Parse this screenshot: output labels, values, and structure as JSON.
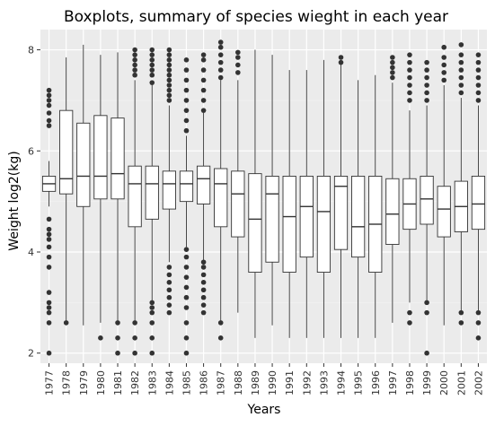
{
  "chart_data": {
    "type": "boxplot",
    "title": "Boxplots, summary of species wieght in each year",
    "xlabel": "Years",
    "ylabel": "Weight log2(kg)",
    "ylim": [
      1.8,
      8.4
    ],
    "y_ticks": [
      2,
      4,
      6,
      8
    ],
    "grid": true,
    "legend": "none",
    "categories": [
      "1977",
      "1978",
      "1979",
      "1980",
      "1981",
      "1982",
      "1983",
      "1984",
      "1985",
      "1986",
      "1987",
      "1988",
      "1989",
      "1990",
      "1991",
      "1992",
      "1993",
      "1994",
      "1995",
      "1996",
      "1997",
      "1998",
      "1999",
      "2000",
      "2001",
      "2002"
    ],
    "boxes": [
      {
        "year": "1977",
        "whislo": 4.9,
        "q1": 5.2,
        "med": 5.35,
        "q3": 5.5,
        "whishi": 5.8,
        "outliers": [
          2.0,
          2.6,
          2.8,
          2.9,
          3.0,
          3.2,
          3.7,
          3.9,
          4.1,
          4.25,
          4.35,
          4.45,
          4.65,
          6.5,
          6.6,
          6.75,
          6.9,
          7.0,
          7.1,
          7.2
        ]
      },
      {
        "year": "1978",
        "whislo": 2.6,
        "q1": 5.15,
        "med": 5.45,
        "q3": 6.8,
        "whishi": 7.85,
        "outliers": [
          2.6
        ]
      },
      {
        "year": "1979",
        "whislo": 2.55,
        "q1": 4.9,
        "med": 5.5,
        "q3": 6.55,
        "whishi": 8.1,
        "outliers": []
      },
      {
        "year": "1980",
        "whislo": 2.6,
        "q1": 5.05,
        "med": 5.5,
        "q3": 6.7,
        "whishi": 7.9,
        "outliers": [
          2.3
        ]
      },
      {
        "year": "1981",
        "whislo": 2.6,
        "q1": 5.05,
        "med": 5.55,
        "q3": 6.65,
        "whishi": 7.95,
        "outliers": [
          2.0,
          2.3,
          2.6
        ]
      },
      {
        "year": "1982",
        "whislo": 2.6,
        "q1": 4.5,
        "med": 5.35,
        "q3": 5.7,
        "whishi": 7.4,
        "outliers": [
          2.0,
          2.3,
          2.6,
          7.5,
          7.6,
          7.7,
          7.8,
          7.9,
          8.0
        ]
      },
      {
        "year": "1983",
        "whislo": 3.0,
        "q1": 4.65,
        "med": 5.35,
        "q3": 5.7,
        "whishi": 7.3,
        "outliers": [
          2.0,
          2.3,
          2.6,
          2.8,
          2.9,
          3.0,
          7.35,
          7.5,
          7.6,
          7.7,
          7.8,
          7.9,
          8.0
        ]
      },
      {
        "year": "1984",
        "whislo": 3.8,
        "q1": 4.85,
        "med": 5.35,
        "q3": 5.6,
        "whishi": 6.9,
        "outliers": [
          2.8,
          2.95,
          3.1,
          3.25,
          3.4,
          3.55,
          3.7,
          7.0,
          7.1,
          7.2,
          7.3,
          7.4,
          7.5,
          7.6,
          7.7,
          7.8,
          7.9,
          8.0
        ]
      },
      {
        "year": "1985",
        "whislo": 4.1,
        "q1": 5.0,
        "med": 5.35,
        "q3": 5.6,
        "whishi": 6.3,
        "outliers": [
          2.0,
          2.3,
          2.6,
          2.9,
          3.1,
          3.3,
          3.5,
          3.7,
          3.9,
          4.05,
          6.4,
          6.6,
          6.8,
          7.0,
          7.2,
          7.4,
          7.6,
          7.8
        ]
      },
      {
        "year": "1986",
        "whislo": 3.8,
        "q1": 4.95,
        "med": 5.45,
        "q3": 5.7,
        "whishi": 6.75,
        "outliers": [
          2.8,
          2.95,
          3.1,
          3.25,
          3.4,
          3.55,
          3.7,
          3.8,
          6.8,
          7.0,
          7.2,
          7.4,
          7.6,
          7.8,
          7.9
        ]
      },
      {
        "year": "1987",
        "whislo": 2.6,
        "q1": 4.5,
        "med": 5.35,
        "q3": 5.65,
        "whishi": 7.4,
        "outliers": [
          2.3,
          2.6,
          7.45,
          7.6,
          7.75,
          7.9,
          8.05,
          8.15
        ]
      },
      {
        "year": "1988",
        "whislo": 2.8,
        "q1": 4.3,
        "med": 5.15,
        "q3": 5.6,
        "whishi": 7.4,
        "outliers": [
          7.55,
          7.7,
          7.85,
          7.95
        ]
      },
      {
        "year": "1989",
        "whislo": 2.3,
        "q1": 3.6,
        "med": 4.65,
        "q3": 5.55,
        "whishi": 8.0,
        "outliers": []
      },
      {
        "year": "1990",
        "whislo": 2.55,
        "q1": 3.8,
        "med": 5.15,
        "q3": 5.5,
        "whishi": 7.9,
        "outliers": []
      },
      {
        "year": "1991",
        "whislo": 2.3,
        "q1": 3.6,
        "med": 4.7,
        "q3": 5.5,
        "whishi": 7.6,
        "outliers": []
      },
      {
        "year": "1992",
        "whislo": 2.3,
        "q1": 3.9,
        "med": 4.9,
        "q3": 5.5,
        "whishi": 7.6,
        "outliers": []
      },
      {
        "year": "1993",
        "whislo": 2.3,
        "q1": 3.6,
        "med": 4.8,
        "q3": 5.5,
        "whishi": 7.8,
        "outliers": []
      },
      {
        "year": "1994",
        "whislo": 2.3,
        "q1": 4.05,
        "med": 5.3,
        "q3": 5.5,
        "whishi": 7.8,
        "outliers": [
          7.75,
          7.85
        ]
      },
      {
        "year": "1995",
        "whislo": 2.3,
        "q1": 3.9,
        "med": 4.5,
        "q3": 5.5,
        "whishi": 7.4,
        "outliers": []
      },
      {
        "year": "1996",
        "whislo": 2.3,
        "q1": 3.6,
        "med": 4.55,
        "q3": 5.5,
        "whishi": 7.5,
        "outliers": []
      },
      {
        "year": "1997",
        "whislo": 2.6,
        "q1": 4.15,
        "med": 4.75,
        "q3": 5.45,
        "whishi": 7.35,
        "outliers": [
          7.45,
          7.55,
          7.65,
          7.75,
          7.85
        ]
      },
      {
        "year": "1998",
        "whislo": 3.0,
        "q1": 4.45,
        "med": 4.95,
        "q3": 5.45,
        "whishi": 6.8,
        "outliers": [
          2.6,
          2.8,
          7.0,
          7.15,
          7.3,
          7.45,
          7.6,
          7.75,
          7.9
        ]
      },
      {
        "year": "1999",
        "whislo": 3.0,
        "q1": 4.55,
        "med": 5.05,
        "q3": 5.5,
        "whishi": 6.9,
        "outliers": [
          2.0,
          2.8,
          3.0,
          7.0,
          7.15,
          7.3,
          7.45,
          7.6,
          7.75
        ]
      },
      {
        "year": "2000",
        "whislo": 2.55,
        "q1": 4.3,
        "med": 4.85,
        "q3": 5.3,
        "whishi": 7.3,
        "outliers": [
          7.4,
          7.55,
          7.7,
          7.85,
          8.05
        ]
      },
      {
        "year": "2001",
        "whislo": 2.8,
        "q1": 4.4,
        "med": 4.9,
        "q3": 5.4,
        "whishi": 7.05,
        "outliers": [
          2.6,
          2.8,
          7.15,
          7.3,
          7.45,
          7.6,
          7.75,
          7.9,
          8.1
        ]
      },
      {
        "year": "2002",
        "whislo": 2.8,
        "q1": 4.45,
        "med": 4.95,
        "q3": 5.5,
        "whishi": 6.9,
        "outliers": [
          2.3,
          2.6,
          2.8,
          7.0,
          7.15,
          7.3,
          7.45,
          7.6,
          7.75,
          7.9
        ]
      }
    ]
  }
}
